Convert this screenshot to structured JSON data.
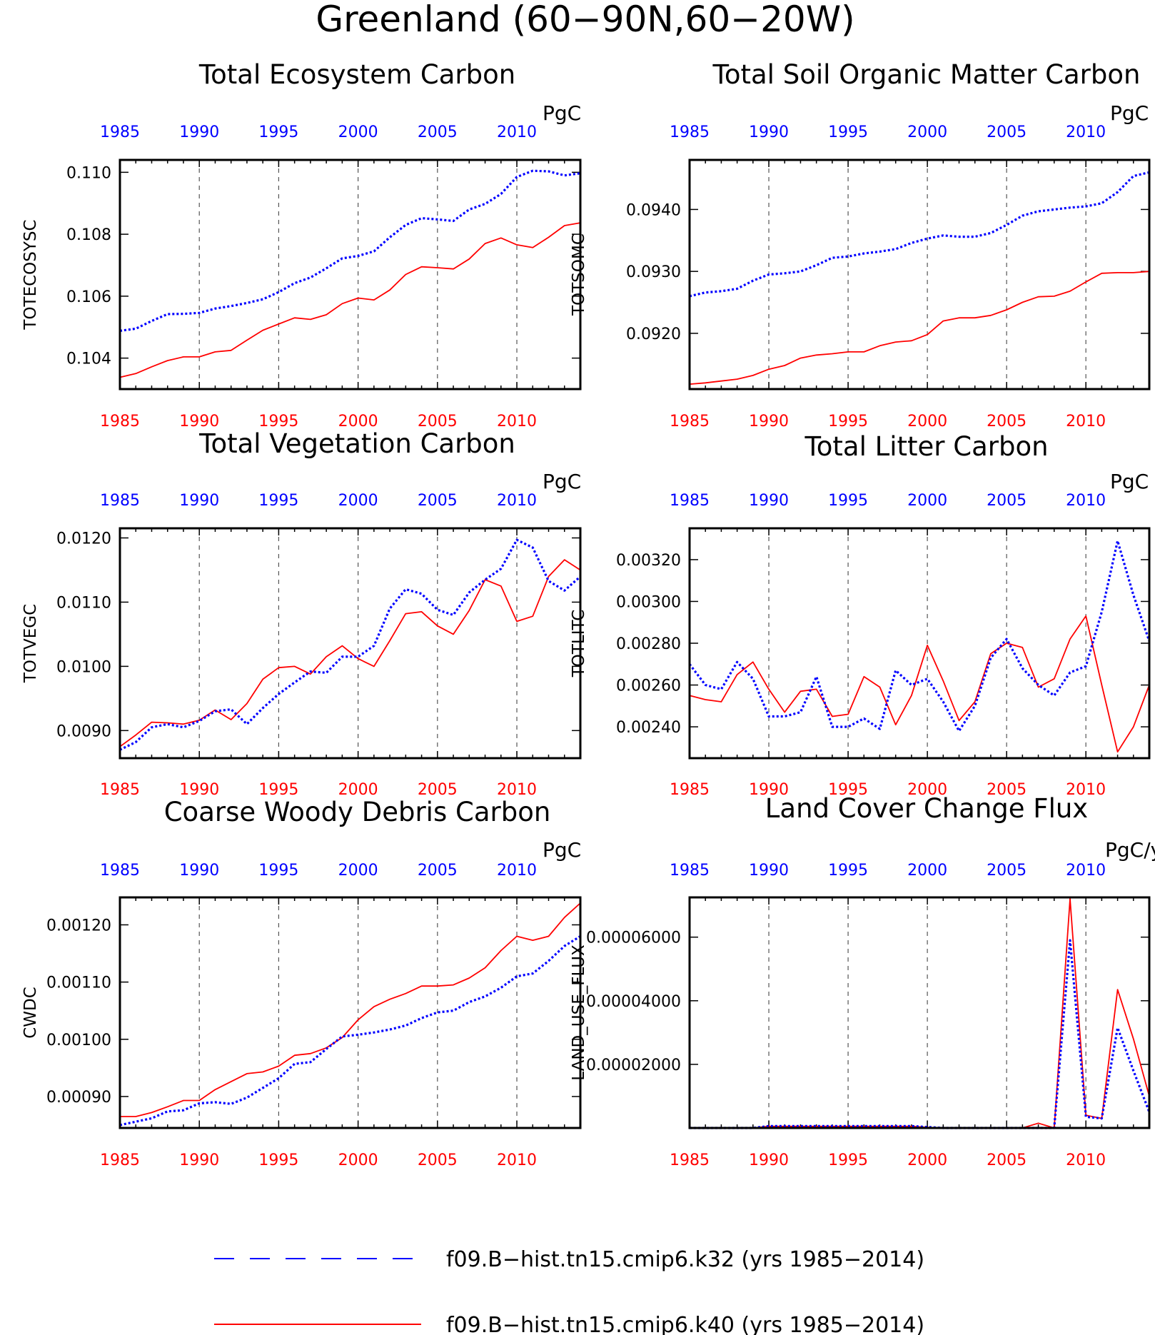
{
  "figure": {
    "title": "Greenland (60−90N,60−20W)",
    "colors": {
      "blue": "#0000ff",
      "red": "#ff0000",
      "frame": "#000000"
    }
  },
  "legend": [
    {
      "label": "f09.B−hist.tn15.cmip6.k32 (yrs 1985−2014)",
      "color": "#0000ff",
      "style": "dashed"
    },
    {
      "label": "f09.B−hist.tn15.cmip6.k40 (yrs 1985−2014)",
      "color": "#ff0000",
      "style": "solid"
    }
  ],
  "chart_data": [
    {
      "type": "line",
      "title": "Total Ecosystem Carbon",
      "ylabel": "TOTECOSYSC",
      "units": "PgC",
      "xlim": [
        1985,
        2014
      ],
      "ylim": [
        0.103,
        0.1104
      ],
      "yticks": [
        0.104,
        0.106,
        0.108,
        0.11
      ],
      "ytick_labels": [
        "0.104",
        "0.106",
        "0.108",
        "0.110"
      ],
      "xticks": [
        1985,
        1990,
        1995,
        2000,
        2005,
        2010
      ],
      "x": [
        1985,
        1986,
        1987,
        1988,
        1989,
        1990,
        1991,
        1992,
        1993,
        1994,
        1995,
        1996,
        1997,
        1998,
        1999,
        2000,
        2001,
        2002,
        2003,
        2004,
        2005,
        2006,
        2007,
        2008,
        2009,
        2010,
        2011,
        2012,
        2013,
        2014
      ],
      "series": [
        {
          "name": "f09.B−hist.tn15.cmip6.k32 (yrs 1985−2014)",
          "color": "#0000ff",
          "style": "dashed",
          "values": [
            0.10488,
            0.10495,
            0.1052,
            0.10542,
            0.10543,
            0.10546,
            0.1056,
            0.10568,
            0.10578,
            0.1059,
            0.10613,
            0.10642,
            0.1066,
            0.1069,
            0.10722,
            0.1073,
            0.10745,
            0.1079,
            0.1083,
            0.10852,
            0.10848,
            0.10843,
            0.1088,
            0.10898,
            0.1093,
            0.10985,
            0.11005,
            0.11003,
            0.1099,
            0.10997
          ]
        },
        {
          "name": "f09.B−hist.tn15.cmip6.k40 (yrs 1985−2014)",
          "color": "#ff0000",
          "style": "solid",
          "values": [
            0.10338,
            0.1035,
            0.10372,
            0.10392,
            0.10404,
            0.10404,
            0.1042,
            0.10425,
            0.10458,
            0.1049,
            0.1051,
            0.1053,
            0.10525,
            0.1054,
            0.10576,
            0.10594,
            0.10588,
            0.1062,
            0.1067,
            0.10695,
            0.10692,
            0.10688,
            0.1072,
            0.1077,
            0.10788,
            0.10766,
            0.10757,
            0.1079,
            0.10828,
            0.10837
          ]
        }
      ]
    },
    {
      "type": "line",
      "title": "Total Soil Organic Matter Carbon",
      "ylabel": "TOTSOMC",
      "units": "PgC",
      "xlim": [
        1985,
        2014
      ],
      "ylim": [
        0.0911,
        0.0948
      ],
      "yticks": [
        0.092,
        0.093,
        0.094
      ],
      "ytick_labels": [
        "0.0920",
        "0.0930",
        "0.0940"
      ],
      "xticks": [
        1985,
        1990,
        1995,
        2000,
        2005,
        2010
      ],
      "x": [
        1985,
        1986,
        1987,
        1988,
        1989,
        1990,
        1991,
        1992,
        1993,
        1994,
        1995,
        1996,
        1997,
        1998,
        1999,
        2000,
        2001,
        2002,
        2003,
        2004,
        2005,
        2006,
        2007,
        2008,
        2009,
        2010,
        2011,
        2012,
        2013,
        2014
      ],
      "series": [
        {
          "name": "f09.B−hist.tn15.cmip6.k32 (yrs 1985−2014)",
          "color": "#0000ff",
          "style": "dashed",
          "values": [
            0.0926,
            0.09266,
            0.09268,
            0.09272,
            0.09285,
            0.09295,
            0.09297,
            0.093,
            0.0931,
            0.09322,
            0.09324,
            0.09329,
            0.09332,
            0.09336,
            0.09346,
            0.09353,
            0.09358,
            0.09356,
            0.09356,
            0.09362,
            0.09375,
            0.0939,
            0.09397,
            0.094,
            0.09403,
            0.09405,
            0.0941,
            0.09428,
            0.09454,
            0.0946
          ]
        },
        {
          "name": "f09.B−hist.tn15.cmip6.k40 (yrs 1985−2014)",
          "color": "#ff0000",
          "style": "solid",
          "values": [
            0.09118,
            0.0912,
            0.09123,
            0.09126,
            0.09132,
            0.09142,
            0.09148,
            0.0916,
            0.09165,
            0.09167,
            0.0917,
            0.0917,
            0.0918,
            0.09186,
            0.09188,
            0.09198,
            0.0922,
            0.09225,
            0.09225,
            0.09229,
            0.09238,
            0.0925,
            0.09259,
            0.0926,
            0.09268,
            0.09283,
            0.09297,
            0.09298,
            0.09298,
            0.093
          ]
        }
      ]
    },
    {
      "type": "line",
      "title": "Total Vegetation Carbon",
      "ylabel": "TOTVEGC",
      "units": "PgC",
      "xlim": [
        1985,
        2014
      ],
      "ylim": [
        0.00857,
        0.01215
      ],
      "yticks": [
        0.009,
        0.01,
        0.011,
        0.012
      ],
      "ytick_labels": [
        "0.0090",
        "0.0100",
        "0.0110",
        "0.0120"
      ],
      "xticks": [
        1985,
        1990,
        1995,
        2000,
        2005,
        2010
      ],
      "x": [
        1985,
        1986,
        1987,
        1988,
        1989,
        1990,
        1991,
        1992,
        1993,
        1994,
        1995,
        1996,
        1997,
        1998,
        1999,
        2000,
        2001,
        2002,
        2003,
        2004,
        2005,
        2006,
        2007,
        2008,
        2009,
        2010,
        2011,
        2012,
        2013,
        2014
      ],
      "series": [
        {
          "name": "f09.B−hist.tn15.cmip6.k32 (yrs 1985−2014)",
          "color": "#0000ff",
          "style": "dashed",
          "values": [
            0.0087,
            0.00882,
            0.00905,
            0.0091,
            0.00905,
            0.00915,
            0.0093,
            0.00933,
            0.0091,
            0.00935,
            0.00957,
            0.00975,
            0.00992,
            0.0099,
            0.01015,
            0.01015,
            0.01032,
            0.0109,
            0.0112,
            0.01113,
            0.01088,
            0.0108,
            0.01115,
            0.01135,
            0.01152,
            0.01197,
            0.01185,
            0.01133,
            0.01118,
            0.0114
          ]
        },
        {
          "name": "f09.B−hist.tn15.cmip6.k40 (yrs 1985−2014)",
          "color": "#ff0000",
          "style": "solid",
          "values": [
            0.00875,
            0.00893,
            0.00913,
            0.00912,
            0.0091,
            0.00916,
            0.00932,
            0.00917,
            0.00942,
            0.0098,
            0.00998,
            0.01,
            0.00988,
            0.01015,
            0.01032,
            0.01012,
            0.01,
            0.0104,
            0.01082,
            0.01085,
            0.01063,
            0.0105,
            0.01087,
            0.01135,
            0.01125,
            0.0107,
            0.01078,
            0.0114,
            0.01166,
            0.0115
          ]
        }
      ]
    },
    {
      "type": "line",
      "title": "Total Litter Carbon",
      "ylabel": "TOTLITC",
      "units": "PgC",
      "xlim": [
        1985,
        2014
      ],
      "ylim": [
        0.00225,
        0.00335
      ],
      "yticks": [
        0.0024,
        0.0026,
        0.0028,
        0.003,
        0.0032
      ],
      "ytick_labels": [
        "0.00240",
        "0.00260",
        "0.00280",
        "0.00300",
        "0.00320"
      ],
      "xticks": [
        1985,
        1990,
        1995,
        2000,
        2005,
        2010
      ],
      "x": [
        1985,
        1986,
        1987,
        1988,
        1989,
        1990,
        1991,
        1992,
        1993,
        1994,
        1995,
        1996,
        1997,
        1998,
        1999,
        2000,
        2001,
        2002,
        2003,
        2004,
        2005,
        2006,
        2007,
        2008,
        2009,
        2010,
        2011,
        2012,
        2013,
        2014
      ],
      "series": [
        {
          "name": "f09.B−hist.tn15.cmip6.k32 (yrs 1985−2014)",
          "color": "#0000ff",
          "style": "dashed",
          "values": [
            0.0027,
            0.0026,
            0.00258,
            0.00271,
            0.00263,
            0.00245,
            0.00245,
            0.00247,
            0.00264,
            0.0024,
            0.0024,
            0.00244,
            0.00239,
            0.00267,
            0.0026,
            0.00263,
            0.00252,
            0.00238,
            0.0025,
            0.00273,
            0.00282,
            0.00268,
            0.0026,
            0.00255,
            0.00266,
            0.00269,
            0.00295,
            0.00329,
            0.00303,
            0.00281
          ]
        },
        {
          "name": "f09.B−hist.tn15.cmip6.k40 (yrs 1985−2014)",
          "color": "#ff0000",
          "style": "solid",
          "values": [
            0.00255,
            0.00253,
            0.00252,
            0.00265,
            0.00271,
            0.00258,
            0.00247,
            0.00257,
            0.00258,
            0.00245,
            0.00246,
            0.00264,
            0.00259,
            0.00241,
            0.00255,
            0.00279,
            0.00262,
            0.00243,
            0.00252,
            0.00275,
            0.0028,
            0.00278,
            0.00259,
            0.00263,
            0.00282,
            0.00293,
            0.0026,
            0.00228,
            0.0024,
            0.0026
          ]
        }
      ]
    },
    {
      "type": "line",
      "title": "Coarse Woody Debris Carbon",
      "ylabel": "CWDC",
      "units": "PgC",
      "xlim": [
        1985,
        2014
      ],
      "ylim": [
        0.000845,
        0.001248
      ],
      "yticks": [
        0.0009,
        0.001,
        0.0011,
        0.0012
      ],
      "ytick_labels": [
        "0.00090",
        "0.00100",
        "0.00110",
        "0.00120"
      ],
      "xticks": [
        1985,
        1990,
        1995,
        2000,
        2005,
        2010
      ],
      "x": [
        1985,
        1986,
        1987,
        1988,
        1989,
        1990,
        1991,
        1992,
        1993,
        1994,
        1995,
        1996,
        1997,
        1998,
        1999,
        2000,
        2001,
        2002,
        2003,
        2004,
        2005,
        2006,
        2007,
        2008,
        2009,
        2010,
        2011,
        2012,
        2013,
        2014
      ],
      "series": [
        {
          "name": "f09.B−hist.tn15.cmip6.k32 (yrs 1985−2014)",
          "color": "#0000ff",
          "style": "dashed",
          "values": [
            0.00085,
            0.000856,
            0.000862,
            0.000874,
            0.000876,
            0.000888,
            0.00089,
            0.000887,
            0.000898,
            0.000915,
            0.000932,
            0.000957,
            0.00096,
            0.000983,
            0.001005,
            0.001008,
            0.001012,
            0.001017,
            0.001024,
            0.001037,
            0.001047,
            0.00105,
            0.001065,
            0.001075,
            0.00109,
            0.00111,
            0.001115,
            0.001137,
            0.001163,
            0.00118
          ]
        },
        {
          "name": "f09.B−hist.tn15.cmip6.k40 (yrs 1985−2014)",
          "color": "#ff0000",
          "style": "solid",
          "values": [
            0.000865,
            0.000865,
            0.000872,
            0.000882,
            0.000893,
            0.000893,
            0.000912,
            0.000926,
            0.00094,
            0.000943,
            0.000953,
            0.000972,
            0.000975,
            0.000985,
            0.001003,
            0.001034,
            0.001057,
            0.00107,
            0.00108,
            0.001093,
            0.001093,
            0.001095,
            0.001107,
            0.001125,
            0.001155,
            0.00118,
            0.001173,
            0.00118,
            0.001213,
            0.001238
          ]
        }
      ]
    },
    {
      "type": "line",
      "title": "Land Cover Change Flux",
      "ylabel": "LAND_USE_FLUX",
      "units": "PgC/y",
      "xlim": [
        1985,
        2014
      ],
      "ylim": [
        0.0,
        7.25e-05
      ],
      "yticks": [
        2e-05,
        4e-05,
        6e-05
      ],
      "ytick_labels": [
        "0.00002000",
        "0.00004000",
        "0.00006000"
      ],
      "xticks": [
        1985,
        1990,
        1995,
        2000,
        2005,
        2010
      ],
      "x": [
        1985,
        1986,
        1987,
        1988,
        1989,
        1990,
        1991,
        1992,
        1993,
        1994,
        1995,
        1996,
        1997,
        1998,
        1999,
        2000,
        2001,
        2002,
        2003,
        2004,
        2005,
        2006,
        2007,
        2008,
        2009,
        2010,
        2011,
        2012,
        2013,
        2014
      ],
      "series": [
        {
          "name": "f09.B−hist.tn15.cmip6.k32 (yrs 1985−2014)",
          "color": "#0000ff",
          "style": "dashed",
          "values": [
            0,
            0,
            0,
            0,
            0,
            6e-07,
            6e-07,
            6e-07,
            6e-07,
            6e-07,
            6e-07,
            6e-07,
            6e-07,
            6e-07,
            6e-07,
            3e-07,
            0,
            0,
            0,
            0,
            0,
            0,
            0,
            0,
            5.9e-05,
            3.5e-06,
            3e-06,
            3.15e-05,
            1.8e-05,
            5e-06
          ]
        },
        {
          "name": "f09.B−hist.tn15.cmip6.k40 (yrs 1985−2014)",
          "color": "#ff0000",
          "style": "solid",
          "values": [
            0,
            0,
            0,
            0,
            0,
            5e-07,
            5e-07,
            5e-07,
            5e-07,
            5e-07,
            5e-07,
            5e-07,
            5e-07,
            5e-07,
            5e-07,
            2e-07,
            0,
            0,
            0,
            0,
            0,
            0,
            1.5e-06,
            0,
            7.2e-05,
            4e-06,
            3e-06,
            4.35e-05,
            2.8e-05,
            1e-05
          ]
        }
      ]
    }
  ]
}
